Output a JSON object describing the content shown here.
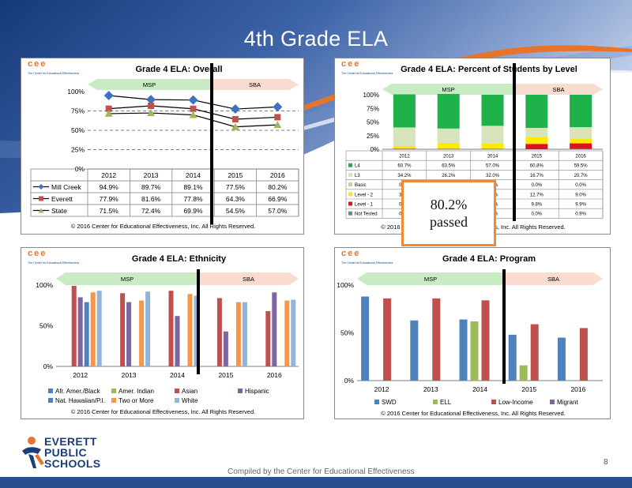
{
  "slide": {
    "title": "4th Grade ELA",
    "page_number": "8",
    "footer_note": "Compiled by the Center for Educational Effectiveness",
    "callout": {
      "value": "80.2%",
      "label": "passed"
    },
    "district_logo": {
      "line1": "EVERETT",
      "line2": "PUBLIC",
      "line3": "SCHOOLS"
    }
  },
  "common": {
    "cee_logo": "cee",
    "cee_tagline": "The Center for Educational Effectiveness",
    "copyright": "© 2016 Center for Educational Effectiveness, Inc. All Rights Reserved.",
    "msp_label": "MSP",
    "sba_label": "SBA",
    "colors": {
      "msp_arrow": "#c8ebc4",
      "sba_arrow": "#f9dcd0",
      "divider": "#000000"
    }
  },
  "chart_data": [
    {
      "id": "overall",
      "type": "line",
      "title": "Grade 4 ELA: Overall",
      "categories": [
        "2012",
        "2013",
        "2014",
        "2015",
        "2016"
      ],
      "y_ticks": [
        "100%",
        "75%",
        "50%",
        "25%",
        "0%"
      ],
      "ylim": [
        0,
        100
      ],
      "series": [
        {
          "name": "Mill Creek",
          "color": "#3f73c2",
          "marker": "diamond",
          "values": [
            94.9,
            89.7,
            89.1,
            77.5,
            80.2
          ],
          "labels": [
            "94.9%",
            "89.7%",
            "89.1%",
            "77.5%",
            "80.2%"
          ]
        },
        {
          "name": "Everett",
          "color": "#c0504d",
          "marker": "square",
          "values": [
            77.9,
            81.6,
            77.8,
            64.3,
            66.9
          ],
          "labels": [
            "77.9%",
            "81.6%",
            "77.8%",
            "64.3%",
            "66.9%"
          ]
        },
        {
          "name": "State",
          "color": "#9bbb59",
          "marker": "triangle",
          "values": [
            71.5,
            72.4,
            69.9,
            54.5,
            57.0
          ],
          "labels": [
            "71.5%",
            "72.4%",
            "69.9%",
            "54.5%",
            "57.0%"
          ]
        }
      ]
    },
    {
      "id": "levels",
      "type": "bar",
      "stacked": true,
      "title": "Grade 4 ELA: Percent of Students by Level",
      "categories": [
        "2012",
        "2013",
        "2014",
        "2015",
        "2016"
      ],
      "y_ticks": [
        "100%",
        "75%",
        "50%",
        "25%",
        "0%"
      ],
      "ylim": [
        0,
        100
      ],
      "series": [
        {
          "name": "Not Tested",
          "color": "#7f7f7f",
          "values": [
            0.6,
            0.4,
            0.2,
            0.0,
            0.9
          ],
          "labels": [
            "0.6%",
            "0.4%",
            "0.2%",
            "0.0%",
            "0.9%"
          ]
        },
        {
          "name": "Level - 1",
          "color": "#e0101e",
          "values": [
            0.5,
            0.5,
            0.5,
            9.8,
            9.9
          ],
          "labels": [
            "0.5%",
            "0.5%",
            "0.5%",
            "9.8%",
            "9.9%"
          ]
        },
        {
          "name": "Level - 2",
          "color": "#ffeb00",
          "values": [
            3.9,
            9.9,
            9.8,
            12.7,
            9.0
          ],
          "labels": [
            "3.9%",
            "9.9%",
            "9.8%",
            "12.7%",
            "9.0%"
          ]
        },
        {
          "name": "Basic",
          "color": "#c4d79b",
          "values": [
            0.8,
            1.0,
            0.5,
            0.0,
            0.0
          ],
          "labels": [
            "0.8%",
            "1.0%",
            "0.5%",
            "0.0%",
            "0.0%"
          ]
        },
        {
          "name": "L3",
          "color": "#d8e4bc",
          "values": [
            34.2,
            26.2,
            32.0,
            16.7,
            20.7
          ],
          "labels": [
            "34.2%",
            "26.2%",
            "32.0%",
            "16.7%",
            "20.7%"
          ]
        },
        {
          "name": "L4",
          "color": "#1fb14a",
          "values": [
            60.7,
            63.5,
            57.0,
            60.8,
            59.5
          ],
          "labels": [
            "60.7%",
            "63.5%",
            "57.0%",
            "60.8%",
            "59.5%"
          ]
        }
      ]
    },
    {
      "id": "ethnicity",
      "type": "bar",
      "title": "Grade 4 ELA: Ethnicity",
      "categories": [
        "2012",
        "2013",
        "2014",
        "2015",
        "2016"
      ],
      "y_ticks": [
        "100%",
        "50%",
        "0%"
      ],
      "ylim": [
        0,
        100
      ],
      "series": [
        {
          "name": "Afr. Amer./Black",
          "color": "#4f81bd",
          "values": [
            null,
            null,
            null,
            null,
            null
          ]
        },
        {
          "name": "Amer. Indian",
          "color": "#9bbb59",
          "values": [
            null,
            null,
            null,
            null,
            null
          ]
        },
        {
          "name": "Asian",
          "color": "#c0504d",
          "values": [
            99,
            90,
            93,
            84,
            68
          ]
        },
        {
          "name": "Hispanic",
          "color": "#8064a2",
          "values": [
            85,
            79,
            62,
            43,
            91
          ]
        },
        {
          "name": "Nat. Hawaiian/P.I.",
          "color": "#4f81bd",
          "values": [
            79,
            null,
            null,
            null,
            null
          ]
        },
        {
          "name": "Two or More",
          "color": "#f79646",
          "values": [
            91,
            81,
            89,
            79,
            81
          ]
        },
        {
          "name": "White",
          "color": "#95b3d7",
          "values": [
            93,
            92,
            87,
            79,
            82
          ]
        }
      ]
    },
    {
      "id": "program",
      "type": "bar",
      "title": "Grade 4 ELA: Program",
      "categories": [
        "2012",
        "2013",
        "2014",
        "2015",
        "2016"
      ],
      "y_ticks": [
        "100%",
        "50%",
        "0%"
      ],
      "ylim": [
        0,
        100
      ],
      "series": [
        {
          "name": "SWD",
          "color": "#4f81bd",
          "values": [
            88,
            63,
            64,
            48,
            45
          ]
        },
        {
          "name": "ELL",
          "color": "#9bbb59",
          "values": [
            null,
            null,
            62,
            16,
            null
          ]
        },
        {
          "name": "Low-Income",
          "color": "#c0504d",
          "values": [
            86,
            86,
            84,
            59,
            55
          ]
        },
        {
          "name": "Migrant",
          "color": "#8064a2",
          "values": [
            null,
            null,
            null,
            null,
            null
          ]
        }
      ]
    }
  ]
}
